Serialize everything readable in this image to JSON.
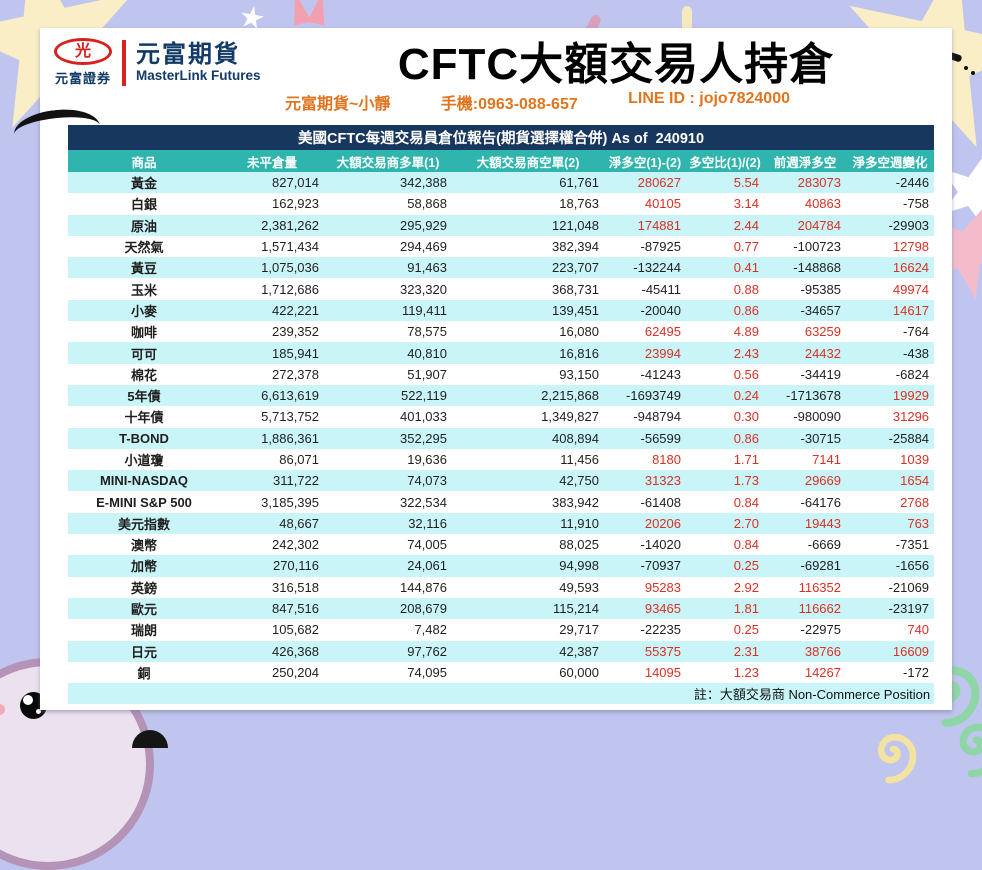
{
  "brand": {
    "logo_symbol": "光",
    "logo_caption": "元富證券",
    "name_zh": "元富期貨",
    "name_en": "MasterLink Futures"
  },
  "header": {
    "title": "CFTC大額交易人持倉",
    "contact_name": "元富期貨~小靜",
    "contact_phone": "手機:0963-088-657",
    "contact_line": "LINE ID : jojo7824000"
  },
  "table": {
    "caption": "美國CFTC每週交易員倉位報告(期貨選擇權合併) As of  240910",
    "columns": [
      "商品",
      "未平倉量",
      "大額交易商多單(1)",
      "大額交易商空單(2)",
      "淨多空(1)-(2)",
      "多空比(1)/(2)",
      "前週淨多空",
      "淨多空週變化"
    ],
    "rows": [
      [
        "黃金",
        "827,014",
        "342,388",
        "61,761",
        "280627",
        "5.54",
        "283073",
        "-2446"
      ],
      [
        "白銀",
        "162,923",
        "58,868",
        "18,763",
        "40105",
        "3.14",
        "40863",
        "-758"
      ],
      [
        "原油",
        "2,381,262",
        "295,929",
        "121,048",
        "174881",
        "2.44",
        "204784",
        "-29903"
      ],
      [
        "天然氣",
        "1,571,434",
        "294,469",
        "382,394",
        "-87925",
        "0.77",
        "-100723",
        "12798"
      ],
      [
        "黃豆",
        "1,075,036",
        "91,463",
        "223,707",
        "-132244",
        "0.41",
        "-148868",
        "16624"
      ],
      [
        "玉米",
        "1,712,686",
        "323,320",
        "368,731",
        "-45411",
        "0.88",
        "-95385",
        "49974"
      ],
      [
        "小麥",
        "422,221",
        "119,411",
        "139,451",
        "-20040",
        "0.86",
        "-34657",
        "14617"
      ],
      [
        "咖啡",
        "239,352",
        "78,575",
        "16,080",
        "62495",
        "4.89",
        "63259",
        "-764"
      ],
      [
        "可可",
        "185,941",
        "40,810",
        "16,816",
        "23994",
        "2.43",
        "24432",
        "-438"
      ],
      [
        "棉花",
        "272,378",
        "51,907",
        "93,150",
        "-41243",
        "0.56",
        "-34419",
        "-6824"
      ],
      [
        "5年債",
        "6,613,619",
        "522,119",
        "2,215,868",
        "-1693749",
        "0.24",
        "-1713678",
        "19929"
      ],
      [
        "十年債",
        "5,713,752",
        "401,033",
        "1,349,827",
        "-948794",
        "0.30",
        "-980090",
        "31296"
      ],
      [
        "T-BOND",
        "1,886,361",
        "352,295",
        "408,894",
        "-56599",
        "0.86",
        "-30715",
        "-25884"
      ],
      [
        "小道瓊",
        "86,071",
        "19,636",
        "11,456",
        "8180",
        "1.71",
        "7141",
        "1039"
      ],
      [
        "MINI-NASDAQ",
        "311,722",
        "74,073",
        "42,750",
        "31323",
        "1.73",
        "29669",
        "1654"
      ],
      [
        "E-MINI S&P 500",
        "3,185,395",
        "322,534",
        "383,942",
        "-61408",
        "0.84",
        "-64176",
        "2768"
      ],
      [
        "美元指數",
        "48,667",
        "32,116",
        "11,910",
        "20206",
        "2.70",
        "19443",
        "763"
      ],
      [
        "澳幣",
        "242,302",
        "74,005",
        "88,025",
        "-14020",
        "0.84",
        "-6669",
        "-7351"
      ],
      [
        "加幣",
        "270,116",
        "24,061",
        "94,998",
        "-70937",
        "0.25",
        "-69281",
        "-1656"
      ],
      [
        "英鎊",
        "316,518",
        "144,876",
        "49,593",
        "95283",
        "2.92",
        "116352",
        "-21069"
      ],
      [
        "歐元",
        "847,516",
        "208,679",
        "115,214",
        "93465",
        "1.81",
        "116662",
        "-23197"
      ],
      [
        "瑞朗",
        "105,682",
        "7,482",
        "29,717",
        "-22235",
        "0.25",
        "-22975",
        "740"
      ],
      [
        "日元",
        "426,368",
        "97,762",
        "42,387",
        "55375",
        "2.31",
        "38766",
        "16609"
      ],
      [
        "銅",
        "250,204",
        "74,095",
        "60,000",
        "14095",
        "1.23",
        "14267",
        "-172"
      ]
    ],
    "footnote": "註：大額交易商 Non-Commerce Position"
  },
  "colors": {
    "header_navy": "#17375e",
    "header_teal": "#2fb5ad",
    "row_cyan": "#c9f5f8",
    "positive_red": "#d93025",
    "negative_dark": "#1f1f1f",
    "contact_orange": "#e07520",
    "logo_red": "#d6231f",
    "brand_navy": "#123a66",
    "background_lavender": "#bfc5ee"
  }
}
